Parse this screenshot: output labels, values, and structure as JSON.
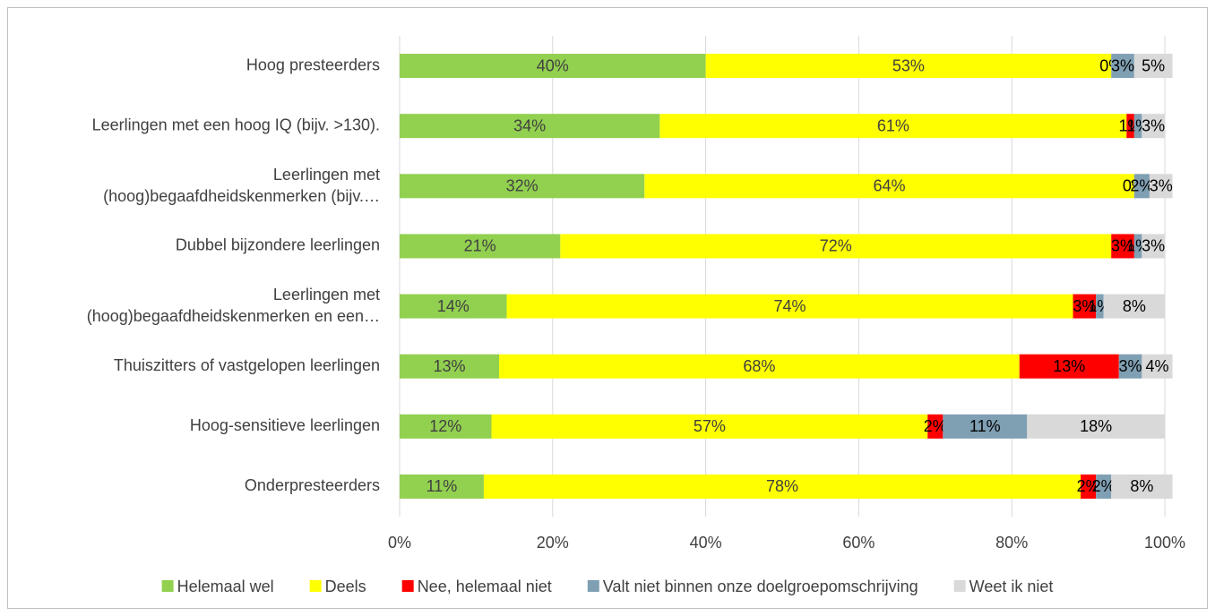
{
  "chart_data": {
    "type": "stacked_bar_horizontal",
    "categories": [
      "Hoog presteerders",
      "Leerlingen met een hoog IQ (bijv. >130).",
      "Leerlingen met (hoog)begaafdheidskenmerken (bijv.…",
      "Dubbel bijzondere leerlingen",
      "Leerlingen met (hoog)begaafdheidskenmerken en een…",
      "Thuiszitters of vastgelopen leerlingen",
      "Hoog-sensitieve leerlingen",
      "Onderpresteerders"
    ],
    "series": [
      {
        "name": "Helemaal wel",
        "color": "#92d050",
        "values": [
          40,
          34,
          32,
          21,
          14,
          13,
          12,
          11
        ],
        "value_labels": [
          "40%",
          "34%",
          "32%",
          "21%",
          "14%",
          "13%",
          "12%",
          "11%"
        ]
      },
      {
        "name": "Deels",
        "color": "#ffff00",
        "values": [
          53,
          61,
          64,
          72,
          74,
          68,
          57,
          78
        ],
        "value_labels": [
          "53%",
          "61%",
          "64%",
          "72%",
          "74%",
          "68%",
          "57%",
          "78%"
        ]
      },
      {
        "name": "Nee,  helemaal niet",
        "color": "#ff0000",
        "values": [
          0,
          1,
          0,
          3,
          3,
          13,
          2,
          2
        ],
        "value_labels": [
          "0%",
          "1%",
          "0%",
          "3%",
          "3%",
          "13%",
          "2%",
          "2%"
        ]
      },
      {
        "name": "Valt niet binnen onze doelgroepomschrijving",
        "color": "#7f9fb3",
        "values": [
          3,
          1,
          2,
          1,
          1,
          3,
          11,
          2
        ],
        "value_labels": [
          "3%",
          "1%",
          "2%",
          "1%",
          "1%",
          "3%",
          "11%",
          "2%"
        ]
      },
      {
        "name": "Weet ik niet",
        "color": "#d9d9d9",
        "values": [
          5,
          3,
          3,
          3,
          8,
          4,
          18,
          8
        ],
        "value_labels": [
          "5%",
          "3%",
          "3%",
          "3%",
          "8%",
          "4%",
          "18%",
          "8%"
        ]
      }
    ],
    "xlim": [
      0,
      100
    ],
    "xticks": [
      {
        "value": 0,
        "label": "0%"
      },
      {
        "value": 20,
        "label": "20%"
      },
      {
        "value": 40,
        "label": "40%"
      },
      {
        "value": 60,
        "label": "60%"
      },
      {
        "value": 80,
        "label": "80%"
      },
      {
        "value": 100,
        "label": "100%"
      }
    ],
    "grid": true,
    "legend": "bottom"
  }
}
